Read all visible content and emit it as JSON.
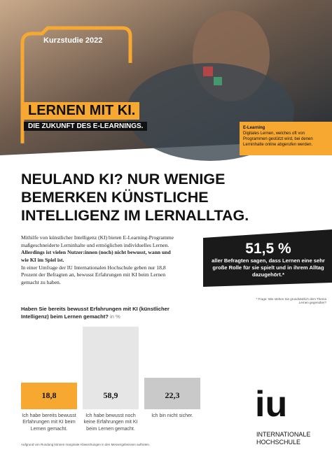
{
  "header": {
    "badge": "Kurzstudie 2022",
    "title": "LERNEN MIT KI.",
    "subtitle": "DIE ZUKUNFT DES E-LEARNINGS.",
    "definition_term": "E-Learning",
    "definition_text": "Digitales Lernen, welches oft von Programmen gestützt wird, bei denen Lerninhalte online abgerufen werden."
  },
  "headline": {
    "lines": [
      "NEULAND KI? NUR WENIGE",
      "BEMERKEN KÜNSTLICHE",
      "INTELLIGENZ IM LERNALLTAG."
    ]
  },
  "body": {
    "intro": "Mithilfe von künstlicher Intelligenz (KI) bieten E-Learning-Programme maßgeschneiderte Lerninhalte und ermöglichen individuelles Lernen.",
    "emphasis": "Allerdings ist vielen Nutzer:innen (noch) nicht bewusst, wann und wie KI im Spiel ist.",
    "rest": "In einer Umfrage der IU Internationalen Hochschule geben nur 18,8 Prozent der Befragten an, bewusst Erfahrungen mit KI beim Lernen gemacht zu haben."
  },
  "stat": {
    "value": "51,5 %",
    "text": "aller Befragten sagen, dass Lernen eine sehr große Rolle für sie spielt und in ihrem Alltag dazugehört.*",
    "footnote": "* Frage: Wie stehen Sie grundsätzlich dem Thema Lernen gegenüber?"
  },
  "chart": {
    "type": "bar",
    "title": "Haben Sie bereits bewusst Erfahrungen mit KI (künstlicher Intelligenz) beim Lernen gemacht?",
    "unit": "in %",
    "categories": [
      "Ich habe bereits bewusst Erfahrungen mit KI beim Lernen gemacht.",
      "Ich habe bewusst noch keine Erfahrungen mit KI beim Lernen gemacht.",
      "Ich bin nicht sicher."
    ],
    "values": [
      18.8,
      58.9,
      22.3
    ],
    "value_labels": [
      "18,8",
      "58,9",
      "22,3"
    ],
    "colors": [
      "#f7a831",
      "#e6e6e6",
      "#c9c9c9"
    ]
  },
  "logo": {
    "mark": "iu",
    "name_line1": "INTERNATIONALE",
    "name_line2": "HOCHSCHULE"
  },
  "footnote": "Aufgrund von Rundung können marginale Abweichungen in den Messergebnissen auftreten."
}
